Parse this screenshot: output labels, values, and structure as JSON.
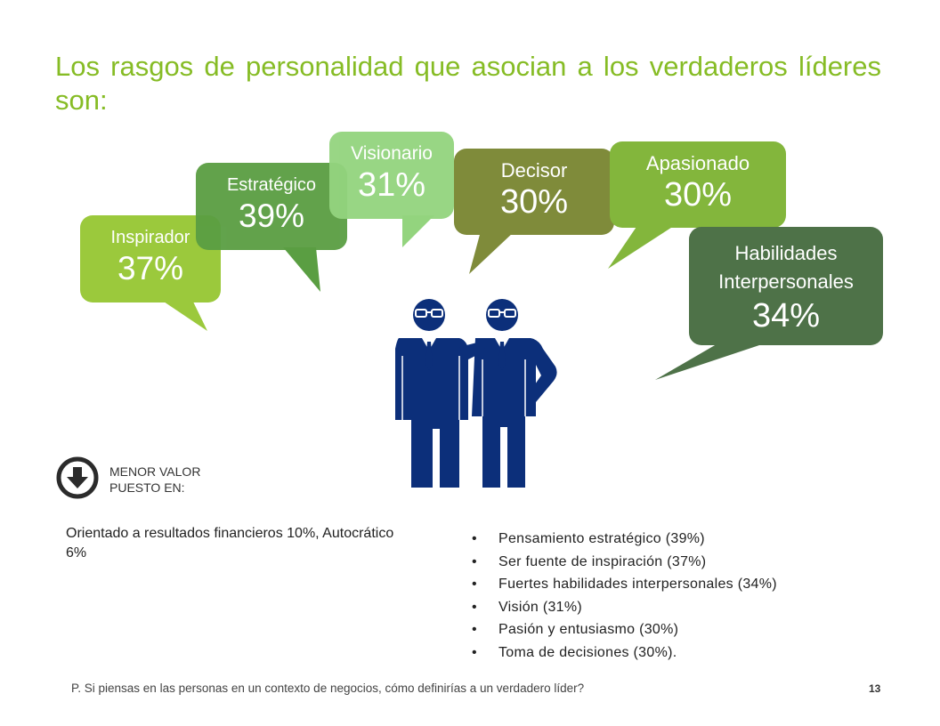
{
  "title": "Los rasgos de personalidad que asocian a los verdaderos líderes son:",
  "colors": {
    "title": "#86bc25",
    "inspirador": "#9bc93c",
    "estrategico": "#5a9e42",
    "visionario": "#93d47e",
    "decisor": "#7f8b3a",
    "apasionado": "#83b63c",
    "habilidades": "#4e7248",
    "figures": "#0c2f7a"
  },
  "bubbles": [
    {
      "id": "inspirador",
      "label": "Inspirador",
      "value": "37%"
    },
    {
      "id": "estrategico",
      "label": "Estratégico",
      "value": "39%"
    },
    {
      "id": "visionario",
      "label": "Visionario",
      "value": "31%"
    },
    {
      "id": "decisor",
      "label": "Decisor",
      "value": "30%"
    },
    {
      "id": "apasionado",
      "label": "Apasionado",
      "value": "30%"
    },
    {
      "id": "habilidades",
      "label": "Habilidades Interpersonales",
      "value": "34%"
    }
  ],
  "figures_icon": "two-businessmen-icon",
  "lowest": {
    "icon": "down-arrow-circle-icon",
    "heading": "MENOR VALOR PUESTO EN:",
    "text": "Orientado a resultados financieros 10%, Autocrático 6%"
  },
  "bullets": [
    "Pensamiento estratégico (39%)",
    "Ser fuente de inspiración (37%)",
    "Fuertes habilidades interpersonales (34%)",
    "Visión (31%)",
    "Pasión y entusiasmo (30%)",
    "Toma de decisiones (30%)."
  ],
  "footer": {
    "question": "P. Si piensas en las personas en un contexto de negocios, cómo definirías a un verdadero líder?",
    "page_number": "13"
  }
}
